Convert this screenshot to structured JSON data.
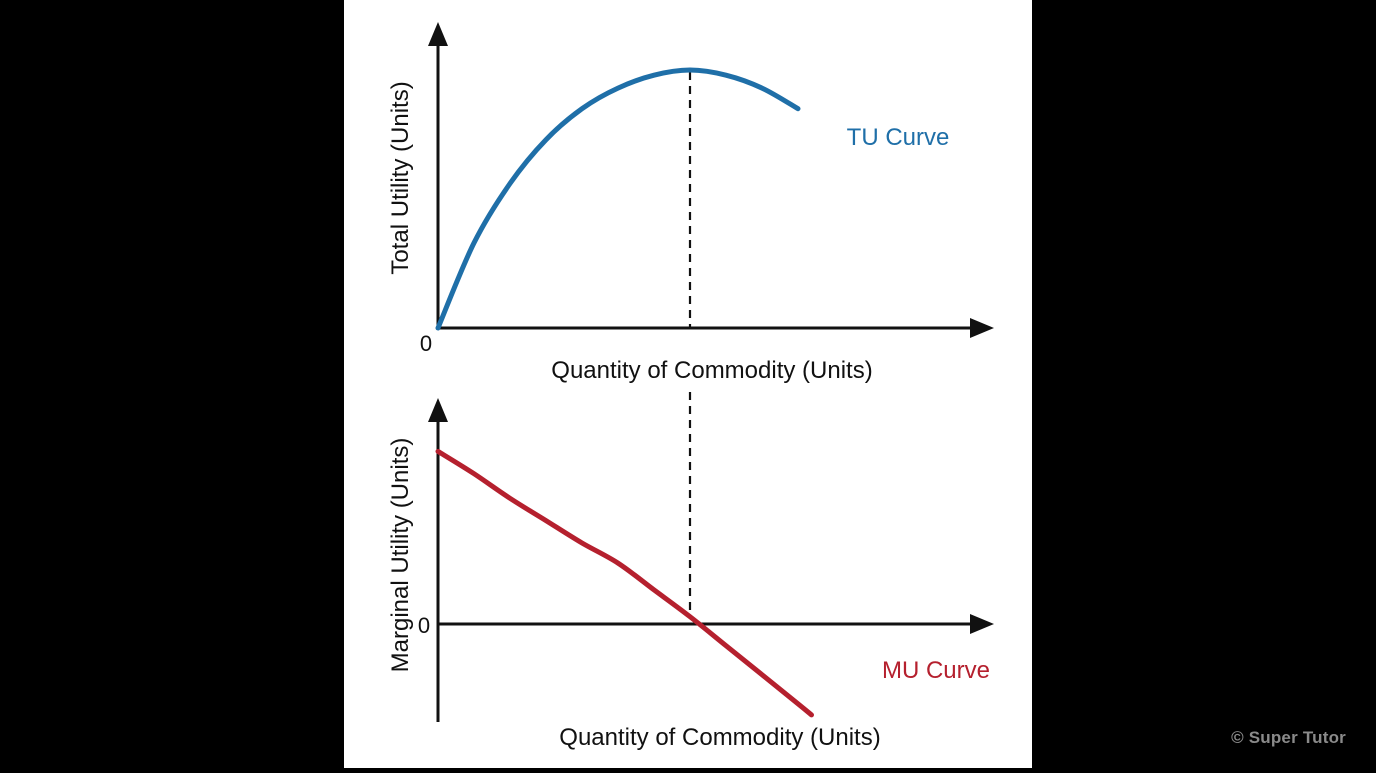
{
  "watermark": "© Super Tutor",
  "colors": {
    "background": "#000000",
    "panel": "#ffffff",
    "axis": "#111111",
    "tu_curve": "#1f6fa8",
    "mu_curve": "#b5202e",
    "watermark": "#8a8a8a"
  },
  "chart_data": [
    {
      "type": "line",
      "xlabel": "Quantity of Commodity (Units)",
      "ylabel": "Total Utility (Units)",
      "origin_label": "0",
      "xlim": [
        0,
        10
      ],
      "ylim": [
        0,
        10
      ],
      "max_marker_x": 5.6,
      "series": [
        {
          "name": "TU Curve",
          "color": "#1f6fa8",
          "x": [
            0,
            0.8,
            1.6,
            2.4,
            3.2,
            4.0,
            4.8,
            5.6,
            6.4,
            7.2,
            8.0
          ],
          "y": [
            0,
            3.3,
            5.6,
            7.3,
            8.5,
            9.3,
            9.8,
            10.0,
            9.8,
            9.3,
            8.5
          ]
        }
      ]
    },
    {
      "type": "line",
      "xlabel": "Quantity of Commodity (Units)",
      "ylabel": "Marginal Utility (Units)",
      "origin_label": "0",
      "xlim": [
        0,
        10
      ],
      "ylim": [
        -4,
        8
      ],
      "max_marker_x": 5.6,
      "series": [
        {
          "name": "MU Curve",
          "color": "#b5202e",
          "x": [
            0,
            0.8,
            1.6,
            2.4,
            3.2,
            4.0,
            4.8,
            5.6,
            6.4,
            7.2,
            8.0,
            8.3
          ],
          "y": [
            7.4,
            6.4,
            5.3,
            4.3,
            3.3,
            2.4,
            1.2,
            0,
            -1.3,
            -2.6,
            -3.9,
            -4.4
          ]
        }
      ]
    }
  ]
}
